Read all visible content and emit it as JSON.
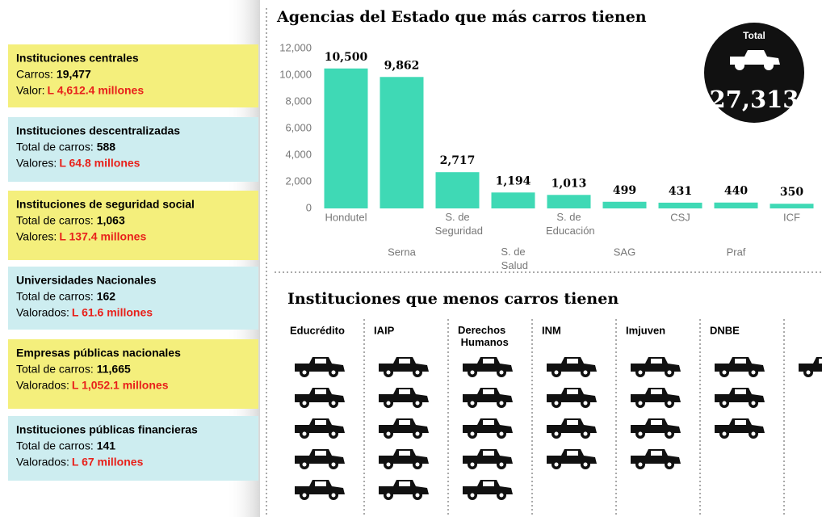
{
  "panels": [
    {
      "title": "Instituciones centrales",
      "count_label": "Carros:",
      "count": "19,477",
      "value_label": "Valor:",
      "value": "L 4,612.4 millones",
      "color": "#f4ef7c"
    },
    {
      "title": "Instituciones descentralizadas",
      "count_label": "Total de carros:",
      "count": "588",
      "value_label": "Valores:",
      "value": "L 64.8 millones",
      "color": "#cdedf0"
    },
    {
      "title": "Instituciones de seguridad social",
      "count_label": "Total de carros:",
      "count": "1,063",
      "value_label": "Valores:",
      "value": "L 137.4 millones",
      "color": "#f4ef7c"
    },
    {
      "title": "Universidades Nacionales",
      "count_label": "Total de carros:",
      "count": "162",
      "value_label": "Valorados:",
      "value": "L 61.6 millones",
      "color": "#cdedf0"
    },
    {
      "title": "Empresas públicas nacionales",
      "count_label": "Total de carros:",
      "count": "11,665",
      "value_label": "Valorados:",
      "value": "L 1,052.1 millones",
      "color": "#f4ef7c"
    },
    {
      "title": "Instituciones públicas financieras",
      "count_label": "Total de carros:",
      "count": "141",
      "value_label": "Valorados:",
      "value": "L 67 millones",
      "color": "#cdedf0"
    }
  ],
  "chart_data": {
    "type": "bar",
    "title": "Agencias del Estado que más carros tienen",
    "categories": [
      "Hondutel",
      "Serna",
      "S. de Seguridad",
      "S. de Salud",
      "S. de Educación",
      "SAG",
      "CSJ",
      "Praf",
      "ICF"
    ],
    "values": [
      10500,
      9862,
      2717,
      1194,
      1013,
      499,
      431,
      440,
      350
    ],
    "value_labels": [
      "10,500",
      "9,862",
      "2,717",
      "1,194",
      "1,013",
      "499",
      "431",
      "440",
      "350"
    ],
    "color": "#3fd9b5",
    "ylim": [
      0,
      12000
    ],
    "yticks": [
      0,
      {
        "value": 2000,
        "label": "2,000"
      },
      {
        "value": 4000,
        "label": "4,000"
      },
      {
        "value": 6000,
        "label": "6,000"
      },
      {
        "value": 8000,
        "label": "8,000"
      },
      {
        "value": 10000,
        "label": "10,000"
      },
      {
        "value": 12000,
        "label": "12,000"
      }
    ],
    "grid": false
  },
  "total": {
    "label": "Total",
    "value": "27,313"
  },
  "pictogram": {
    "type": "pictogram",
    "title": "Instituciones que menos carros tienen",
    "categories": [
      "Educrédito",
      "IAIP",
      "Derechos Humanos",
      "INM",
      "Imjuven",
      "DNBE",
      null
    ],
    "values": [
      5,
      5,
      5,
      4,
      4,
      3,
      1
    ]
  }
}
